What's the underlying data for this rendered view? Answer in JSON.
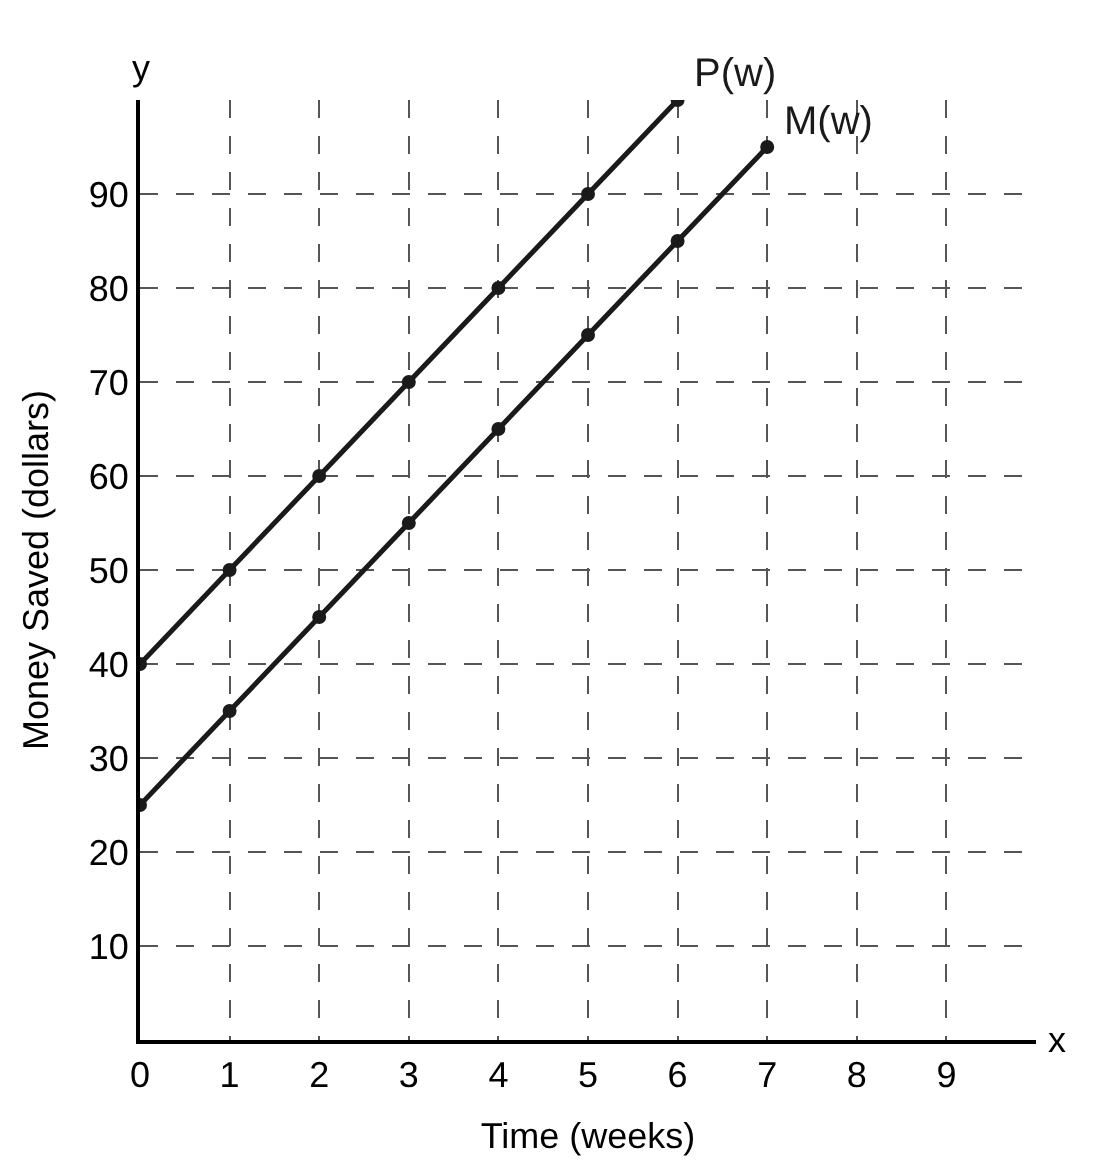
{
  "chart_data": {
    "type": "line",
    "xlabel": "Time (weeks)",
    "ylabel": "Money Saved (dollars)",
    "x": [
      0,
      1,
      2,
      3,
      4,
      5,
      6,
      7
    ],
    "series": [
      {
        "name": "P(w)",
        "color": "#1a1a1a",
        "values": [
          40,
          50,
          60,
          70,
          80,
          90,
          100,
          null
        ]
      },
      {
        "name": "M(w)",
        "color": "#1a1a1a",
        "values": [
          25,
          35,
          45,
          55,
          65,
          75,
          85,
          95
        ]
      }
    ],
    "xlim": [
      0,
      10
    ],
    "ylim": [
      0,
      100
    ],
    "xticks": [
      0,
      1,
      2,
      3,
      4,
      5,
      6,
      7,
      8,
      9
    ],
    "yticks": [
      10,
      20,
      30,
      40,
      50,
      60,
      70,
      80,
      90
    ],
    "annotations": [
      "x",
      "y"
    ],
    "grid": true,
    "legend": false,
    "marker": "circle",
    "line_style": "solid"
  }
}
